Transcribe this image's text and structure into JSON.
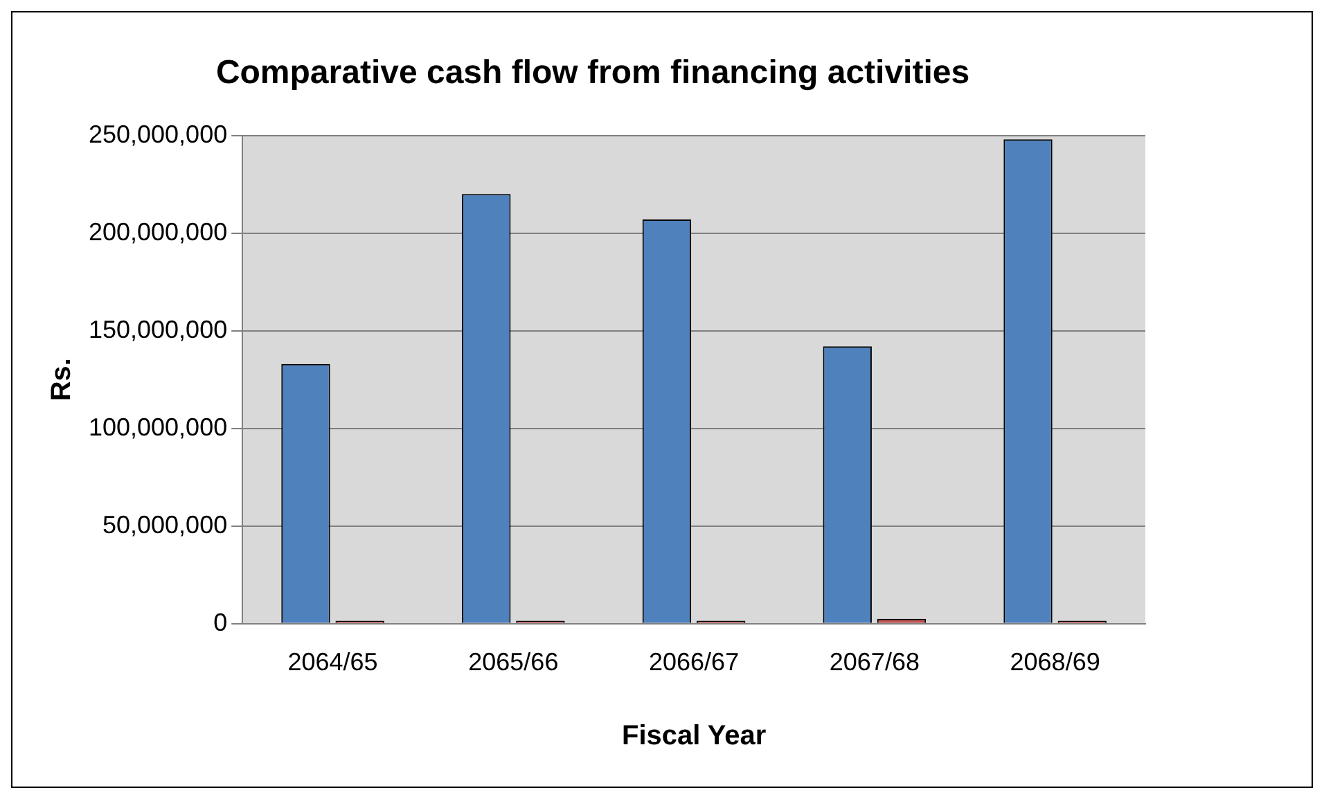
{
  "chart_data": {
    "type": "bar",
    "title": "Comparative cash flow from financing activities",
    "xlabel": "Fiscal Year",
    "ylabel": "Rs.",
    "categories": [
      "2064/65",
      "2065/66",
      "2066/67",
      "2067/68",
      "2068/69"
    ],
    "series": [
      {
        "color": "#4f81bd",
        "values": [
          133000000,
          220000000,
          207000000,
          142000000,
          248000000
        ]
      },
      {
        "color": "#c0504d",
        "values": [
          1500000,
          1500000,
          1500000,
          2500000,
          1500000
        ]
      }
    ],
    "ylim": [
      0,
      250000000
    ],
    "yticks": [
      0,
      {
        "value": 50000000,
        "label": "50,000,000"
      },
      {
        "value": 100000000,
        "label": "100,000,000"
      },
      {
        "value": 150000000,
        "label": "150,000,000"
      },
      {
        "value": 200000000,
        "label": "200,000,000"
      },
      {
        "value": 250000000,
        "label": "250,000,000"
      }
    ],
    "grid": "y"
  }
}
